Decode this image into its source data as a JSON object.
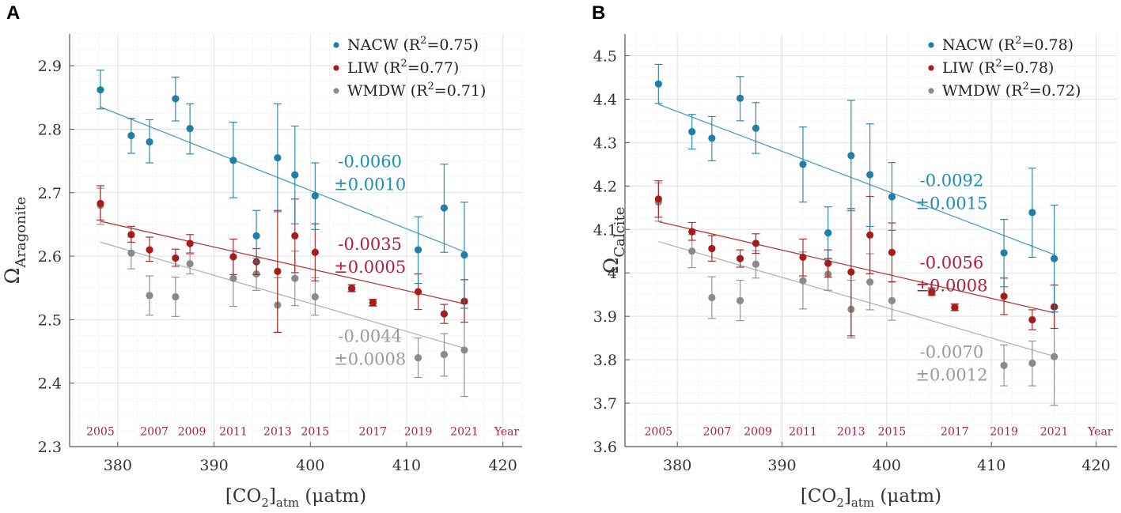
{
  "colors": {
    "NACW": "#1f7fa6",
    "LIW": "#a61c1c",
    "WMDW": "#8a8a8a",
    "fit_NACW": "#4a9fc4",
    "fit_LIW": "#b53a3a",
    "fit_WMDW": "#b4b4b4",
    "slope_NACW": "#1a8fb5",
    "slope_LIW": "#b01e3a",
    "slope_WMDW": "#9a9a9a",
    "year_labels": "#b01e4a",
    "grid": "#e2e2e2",
    "axis": "#555555"
  },
  "chart_data": [
    {
      "type": "scatter",
      "panel_letter": "A",
      "ylabel_main": "Ω",
      "ylabel_sub": "Aragonite",
      "xlabel_main": "[CO",
      "xlabel_sub1": "2",
      "xlabel_close": "]",
      "xlabel_sub2": "atm",
      "xlabel_unit": "(μatm)",
      "xlim": [
        375,
        422
      ],
      "ylim": [
        2.3,
        2.95
      ],
      "xticks": [
        380,
        390,
        400,
        410,
        420
      ],
      "yticks": [
        2.3,
        2.4,
        2.5,
        2.6,
        2.7,
        2.8,
        2.9
      ],
      "ytick_labels": [
        "2.3",
        "2.4",
        "2.5",
        "2.6",
        "2.7",
        "2.8",
        "2.9"
      ],
      "grid": true,
      "year_label_y": 2.318,
      "year_ticks": [
        {
          "label": "2005",
          "x": 378.2
        },
        {
          "label": "2007",
          "x": 383.8
        },
        {
          "label": "2009",
          "x": 387.7
        },
        {
          "label": "2011",
          "x": 392.0
        },
        {
          "label": "2013",
          "x": 396.6
        },
        {
          "label": "2015",
          "x": 400.5
        },
        {
          "label": "2017",
          "x": 406.5
        },
        {
          "label": "2019",
          "x": 411.2
        },
        {
          "label": "2021",
          "x": 416.0
        },
        {
          "label": "Year",
          "x": 420.4
        }
      ],
      "legend_position": "top-right",
      "series": [
        {
          "name": "NACW",
          "legend_prefix": "NACW (R",
          "legend_sup": "2",
          "legend_suffix": "=0.75)",
          "slope_text": "-0.0060",
          "slope_err": "±0.0010",
          "slope_pos": [
            406.2,
            2.74
          ],
          "fit": [
            [
              378.2,
              2.835
            ],
            [
              416.0,
              2.607
            ]
          ],
          "points": [
            {
              "x": 378.2,
              "y": 2.862,
              "lo": 2.832,
              "hi": 2.893
            },
            {
              "x": 381.4,
              "y": 2.79,
              "lo": 2.762,
              "hi": 2.817
            },
            {
              "x": 383.3,
              "y": 2.78,
              "lo": 2.747,
              "hi": 2.815
            },
            {
              "x": 386.0,
              "y": 2.848,
              "lo": 2.813,
              "hi": 2.882
            },
            {
              "x": 387.5,
              "y": 2.801,
              "lo": 2.761,
              "hi": 2.84
            },
            {
              "x": 392.0,
              "y": 2.751,
              "lo": 2.692,
              "hi": 2.811
            },
            {
              "x": 394.4,
              "y": 2.632,
              "lo": 2.59,
              "hi": 2.672
            },
            {
              "x": 396.6,
              "y": 2.755,
              "lo": 2.67,
              "hi": 2.84
            },
            {
              "x": 398.4,
              "y": 2.728,
              "lo": 2.651,
              "hi": 2.805
            },
            {
              "x": 400.5,
              "y": 2.695,
              "lo": 2.642,
              "hi": 2.747
            },
            {
              "x": 411.2,
              "y": 2.61,
              "lo": 2.557,
              "hi": 2.662
            },
            {
              "x": 413.9,
              "y": 2.676,
              "lo": 2.606,
              "hi": 2.745
            },
            {
              "x": 416.0,
              "y": 2.602,
              "lo": 2.518,
              "hi": 2.685
            }
          ]
        },
        {
          "name": "LIW",
          "legend_prefix": "LIW (R",
          "legend_sup": "2",
          "legend_suffix": "=0.77)",
          "slope_text": "-0.0035",
          "slope_err": "±0.0005",
          "slope_pos": [
            406.2,
            2.61
          ],
          "fit": [
            [
              378.2,
              2.655
            ],
            [
              416.0,
              2.525
            ]
          ],
          "points": [
            {
              "x": 378.2,
              "y": 2.683,
              "lo": 2.657,
              "hi": 2.711
            },
            {
              "x": 381.4,
              "y": 2.634,
              "lo": 2.622,
              "hi": 2.647
            },
            {
              "x": 383.3,
              "y": 2.61,
              "lo": 2.592,
              "hi": 2.63
            },
            {
              "x": 386.0,
              "y": 2.597,
              "lo": 2.584,
              "hi": 2.611
            },
            {
              "x": 387.5,
              "y": 2.62,
              "lo": 2.605,
              "hi": 2.634
            },
            {
              "x": 392.0,
              "y": 2.599,
              "lo": 2.571,
              "hi": 2.627
            },
            {
              "x": 394.4,
              "y": 2.591,
              "lo": 2.571,
              "hi": 2.612
            },
            {
              "x": 396.6,
              "y": 2.576,
              "lo": 2.48,
              "hi": 2.672
            },
            {
              "x": 398.4,
              "y": 2.632,
              "lo": 2.574,
              "hi": 2.69
            },
            {
              "x": 400.5,
              "y": 2.606,
              "lo": 2.561,
              "hi": 2.651
            },
            {
              "x": 404.3,
              "y": 2.549,
              "lo": 2.544,
              "hi": 2.555
            },
            {
              "x": 406.5,
              "y": 2.527,
              "lo": 2.522,
              "hi": 2.532
            },
            {
              "x": 411.2,
              "y": 2.544,
              "lo": 2.516,
              "hi": 2.572
            },
            {
              "x": 413.9,
              "y": 2.509,
              "lo": 2.494,
              "hi": 2.524
            },
            {
              "x": 416.0,
              "y": 2.529,
              "lo": 2.496,
              "hi": 2.563
            }
          ]
        },
        {
          "name": "WMDW",
          "legend_prefix": "WMDW (R",
          "legend_sup": "2",
          "legend_suffix": "=0.71)",
          "slope_text": "-0.0044",
          "slope_err": "±0.0008",
          "slope_pos": [
            406.2,
            2.465
          ],
          "fit": [
            [
              378.2,
              2.622
            ],
            [
              416.0,
              2.455
            ]
          ],
          "points": [
            {
              "x": 378.2,
              "y": 2.68,
              "lo": 2.65,
              "hi": 2.707
            },
            {
              "x": 381.4,
              "y": 2.605,
              "lo": 2.58,
              "hi": 2.63
            },
            {
              "x": 383.3,
              "y": 2.538,
              "lo": 2.507,
              "hi": 2.569
            },
            {
              "x": 386.0,
              "y": 2.536,
              "lo": 2.505,
              "hi": 2.567
            },
            {
              "x": 387.5,
              "y": 2.588,
              "lo": 2.572,
              "hi": 2.603
            },
            {
              "x": 392.0,
              "y": 2.565,
              "lo": 2.521,
              "hi": 2.609
            },
            {
              "x": 394.4,
              "y": 2.572,
              "lo": 2.546,
              "hi": 2.597
            },
            {
              "x": 396.6,
              "y": 2.523,
              "lo": 2.48,
              "hi": 2.566
            },
            {
              "x": 398.4,
              "y": 2.565,
              "lo": 2.522,
              "hi": 2.608
            },
            {
              "x": 400.5,
              "y": 2.536,
              "lo": 2.507,
              "hi": 2.566
            },
            {
              "x": 404.3,
              "y": 2.55,
              "lo": 2.545,
              "hi": 2.555
            },
            {
              "x": 406.5,
              "y": 2.526,
              "lo": 2.521,
              "hi": 2.531
            },
            {
              "x": 411.2,
              "y": 2.44,
              "lo": 2.409,
              "hi": 2.471
            },
            {
              "x": 413.9,
              "y": 2.445,
              "lo": 2.411,
              "hi": 2.478
            },
            {
              "x": 416.0,
              "y": 2.452,
              "lo": 2.379,
              "hi": 2.525
            }
          ]
        }
      ]
    },
    {
      "type": "scatter",
      "panel_letter": "B",
      "ylabel_main": "Ω",
      "ylabel_sub": "Calcite",
      "xlabel_main": "[CO",
      "xlabel_sub1": "2",
      "xlabel_close": "]",
      "xlabel_sub2": "atm",
      "xlabel_unit": "(μatm)",
      "xlim": [
        375,
        422
      ],
      "ylim": [
        3.6,
        4.55
      ],
      "xticks": [
        380,
        390,
        400,
        410,
        420
      ],
      "yticks": [
        3.6,
        3.7,
        3.8,
        3.9,
        4.0,
        4.1,
        4.2,
        4.3,
        4.4,
        4.5
      ],
      "ytick_labels": [
        "3.6",
        "3.7",
        "3.8",
        "3.9",
        "4",
        "4.1",
        "4.2",
        "4.3",
        "4.4",
        "4.5"
      ],
      "grid": true,
      "year_label_y": 3.626,
      "year_ticks": [
        {
          "label": "2005",
          "x": 378.2
        },
        {
          "label": "2007",
          "x": 383.8
        },
        {
          "label": "2009",
          "x": 387.7
        },
        {
          "label": "2011",
          "x": 392.0
        },
        {
          "label": "2013",
          "x": 396.6
        },
        {
          "label": "2015",
          "x": 400.5
        },
        {
          "label": "2017",
          "x": 406.5
        },
        {
          "label": "2019",
          "x": 411.2
        },
        {
          "label": "2021",
          "x": 416.0
        },
        {
          "label": "Year",
          "x": 420.4
        }
      ],
      "legend_position": "top-right",
      "series": [
        {
          "name": "NACW",
          "legend_prefix": "NACW (R",
          "legend_sup": "2",
          "legend_suffix": "=0.78)",
          "slope_text": "-0.0092",
          "slope_err": "±0.0015",
          "slope_pos": [
            406.2,
            4.2
          ],
          "fit": [
            [
              378.2,
              4.388
            ],
            [
              416.0,
              4.042
            ]
          ],
          "points": [
            {
              "x": 378.2,
              "y": 4.435,
              "lo": 4.39,
              "hi": 4.48
            },
            {
              "x": 381.4,
              "y": 4.325,
              "lo": 4.285,
              "hi": 4.365
            },
            {
              "x": 383.3,
              "y": 4.31,
              "lo": 4.258,
              "hi": 4.36
            },
            {
              "x": 386.0,
              "y": 4.402,
              "lo": 4.35,
              "hi": 4.452
            },
            {
              "x": 387.5,
              "y": 4.333,
              "lo": 4.275,
              "hi": 4.392
            },
            {
              "x": 392.0,
              "y": 4.25,
              "lo": 4.163,
              "hi": 4.336
            },
            {
              "x": 394.4,
              "y": 4.092,
              "lo": 4.032,
              "hi": 4.152
            },
            {
              "x": 396.6,
              "y": 4.27,
              "lo": 4.143,
              "hi": 4.397
            },
            {
              "x": 398.4,
              "y": 4.226,
              "lo": 4.107,
              "hi": 4.343
            },
            {
              "x": 400.5,
              "y": 4.175,
              "lo": 4.098,
              "hi": 4.254
            },
            {
              "x": 411.2,
              "y": 4.046,
              "lo": 3.968,
              "hi": 4.123
            },
            {
              "x": 413.9,
              "y": 4.139,
              "lo": 4.036,
              "hi": 4.241
            },
            {
              "x": 416.0,
              "y": 4.033,
              "lo": 3.91,
              "hi": 4.156
            }
          ]
        },
        {
          "name": "LIW",
          "legend_prefix": "LIW (R",
          "legend_sup": "2",
          "legend_suffix": "=0.78)",
          "slope_text": "-0.0056",
          "slope_err": "±0.0008",
          "slope_pos": [
            406.2,
            4.01
          ],
          "fit": [
            [
              378.2,
              4.118
            ],
            [
              416.0,
              3.908
            ]
          ],
          "points": [
            {
              "x": 378.2,
              "y": 4.17,
              "lo": 4.128,
              "hi": 4.212
            },
            {
              "x": 381.4,
              "y": 4.095,
              "lo": 4.075,
              "hi": 4.116
            },
            {
              "x": 383.3,
              "y": 4.056,
              "lo": 4.027,
              "hi": 4.086
            },
            {
              "x": 386.0,
              "y": 4.033,
              "lo": 4.013,
              "hi": 4.053
            },
            {
              "x": 387.5,
              "y": 4.068,
              "lo": 4.045,
              "hi": 4.09
            },
            {
              "x": 392.0,
              "y": 4.036,
              "lo": 3.993,
              "hi": 4.078
            },
            {
              "x": 394.4,
              "y": 4.022,
              "lo": 3.99,
              "hi": 4.053
            },
            {
              "x": 396.6,
              "y": 4.002,
              "lo": 3.855,
              "hi": 4.148
            },
            {
              "x": 398.4,
              "y": 4.087,
              "lo": 3.998,
              "hi": 4.176
            },
            {
              "x": 400.5,
              "y": 4.047,
              "lo": 3.979,
              "hi": 4.115
            },
            {
              "x": 404.3,
              "y": 3.955,
              "lo": 3.948,
              "hi": 3.963
            },
            {
              "x": 406.5,
              "y": 3.92,
              "lo": 3.913,
              "hi": 3.928
            },
            {
              "x": 411.2,
              "y": 3.946,
              "lo": 3.904,
              "hi": 3.988
            },
            {
              "x": 413.9,
              "y": 3.892,
              "lo": 3.869,
              "hi": 3.915
            },
            {
              "x": 416.0,
              "y": 3.922,
              "lo": 3.872,
              "hi": 3.972
            }
          ]
        },
        {
          "name": "WMDW",
          "legend_prefix": "WMDW (R",
          "legend_sup": "2",
          "legend_suffix": "=0.72)",
          "slope_text": "-0.0070",
          "slope_err": "±0.0012",
          "slope_pos": [
            406.2,
            3.805
          ],
          "fit": [
            [
              378.2,
              4.072
            ],
            [
              416.0,
              3.808
            ]
          ],
          "points": [
            {
              "x": 378.2,
              "y": 4.163,
              "lo": 4.119,
              "hi": 4.207
            },
            {
              "x": 381.4,
              "y": 4.05,
              "lo": 4.012,
              "hi": 4.088
            },
            {
              "x": 383.3,
              "y": 3.943,
              "lo": 3.895,
              "hi": 3.991
            },
            {
              "x": 386.0,
              "y": 3.936,
              "lo": 3.89,
              "hi": 3.983
            },
            {
              "x": 387.5,
              "y": 4.02,
              "lo": 3.988,
              "hi": 4.051
            },
            {
              "x": 392.0,
              "y": 3.982,
              "lo": 3.917,
              "hi": 4.048
            },
            {
              "x": 394.4,
              "y": 3.997,
              "lo": 3.96,
              "hi": 4.034
            },
            {
              "x": 396.6,
              "y": 3.916,
              "lo": 3.85,
              "hi": 3.983
            },
            {
              "x": 398.4,
              "y": 3.979,
              "lo": 3.915,
              "hi": 4.044
            },
            {
              "x": 400.5,
              "y": 3.936,
              "lo": 3.891,
              "hi": 3.98
            },
            {
              "x": 404.3,
              "y": 3.958,
              "lo": 3.951,
              "hi": 3.966
            },
            {
              "x": 406.5,
              "y": 3.921,
              "lo": 3.914,
              "hi": 3.929
            },
            {
              "x": 411.2,
              "y": 3.787,
              "lo": 3.74,
              "hi": 3.834
            },
            {
              "x": 413.9,
              "y": 3.792,
              "lo": 3.74,
              "hi": 3.843
            },
            {
              "x": 416.0,
              "y": 3.807,
              "lo": 3.695,
              "hi": 3.918
            }
          ]
        }
      ]
    }
  ]
}
